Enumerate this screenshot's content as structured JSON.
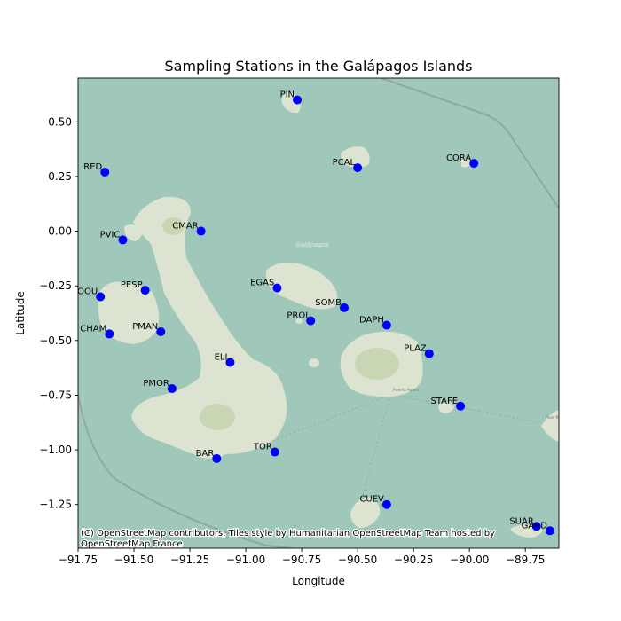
{
  "figure": {
    "title": "Sampling Stations in the Galápagos Islands",
    "xlabel": "Longitude",
    "ylabel": "Latitude",
    "attribution": "(C) OpenStreetMap contributors, Tiles style by Humanitarian OpenStreetMap Team hosted by OpenStreetMap France",
    "basemap_labels": {
      "archipelago": "Galápagos",
      "town": "Puerto Ayora",
      "edge_town": "Puer Moren"
    }
  },
  "chart_data": {
    "type": "scatter",
    "xlim": [
      -91.75,
      -89.6
    ],
    "ylim": [
      -1.45,
      0.7
    ],
    "x_ticks": [
      -91.75,
      -91.5,
      -91.25,
      -91.0,
      -90.75,
      -90.5,
      -90.25,
      -90.0,
      -89.75
    ],
    "x_tick_labels": [
      "−91.75",
      "−91.50",
      "−91.25",
      "−91.00",
      "−90.75",
      "−90.50",
      "−90.25",
      "−90.00",
      "−89.75"
    ],
    "y_ticks": [
      0.5,
      0.25,
      0.0,
      -0.25,
      -0.5,
      -0.75,
      -1.0,
      -1.25
    ],
    "y_tick_labels": [
      "0.50",
      "0.25",
      "0.00",
      "−0.25",
      "−0.50",
      "−0.75",
      "−1.00",
      "−1.25"
    ],
    "marker_color": "#0000ff",
    "basemap": "OpenStreetMap Humanitarian",
    "colors": {
      "ocean": "#9fc8bb",
      "land": "#dde3d1",
      "land_hills": "#c9d6b4",
      "shipping_lane": "#8a9fa6"
    },
    "points": [
      {
        "label": "PIN",
        "lon": -90.77,
        "lat": 0.6
      },
      {
        "label": "RED",
        "lon": -91.63,
        "lat": 0.27
      },
      {
        "label": "PCAL",
        "lon": -90.5,
        "lat": 0.29
      },
      {
        "label": "CORA",
        "lon": -89.98,
        "lat": 0.31
      },
      {
        "label": "PVIC",
        "lon": -91.55,
        "lat": -0.04
      },
      {
        "label": "CMAR",
        "lon": -91.2,
        "lat": 0.0
      },
      {
        "label": "EGAS",
        "lon": -90.86,
        "lat": -0.26
      },
      {
        "label": "PESP",
        "lon": -91.45,
        "lat": -0.27
      },
      {
        "label": "COOU",
        "lon": -91.65,
        "lat": -0.3
      },
      {
        "label": "SOMB",
        "lon": -90.56,
        "lat": -0.35
      },
      {
        "label": "PROI",
        "lon": -90.71,
        "lat": -0.41
      },
      {
        "label": "DAPH",
        "lon": -90.37,
        "lat": -0.43
      },
      {
        "label": "CHAM",
        "lon": -91.61,
        "lat": -0.47
      },
      {
        "label": "PMAN",
        "lon": -91.38,
        "lat": -0.46
      },
      {
        "label": "PLAZ",
        "lon": -90.18,
        "lat": -0.56
      },
      {
        "label": "ELI",
        "lon": -91.07,
        "lat": -0.6
      },
      {
        "label": "PMOR",
        "lon": -91.33,
        "lat": -0.72
      },
      {
        "label": "STAFE",
        "lon": -90.04,
        "lat": -0.8
      },
      {
        "label": "TOR",
        "lon": -90.87,
        "lat": -1.01
      },
      {
        "label": "BAR",
        "lon": -91.13,
        "lat": -1.04
      },
      {
        "label": "CUEV",
        "lon": -90.37,
        "lat": -1.25
      },
      {
        "label": "SUAR",
        "lon": -89.7,
        "lat": -1.35
      },
      {
        "label": "GARD",
        "lon": -89.64,
        "lat": -1.37
      }
    ]
  }
}
